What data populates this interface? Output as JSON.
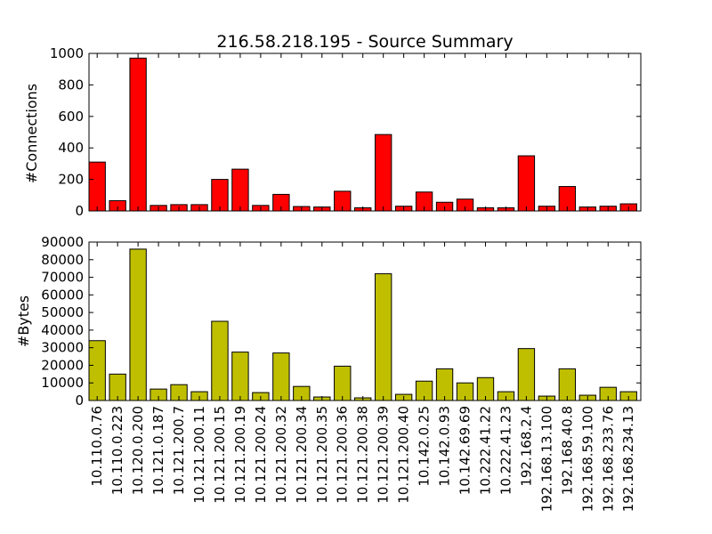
{
  "chart_data": [
    {
      "type": "bar",
      "title": "216.58.218.195 - Source Summary",
      "xlabel": "",
      "ylabel": "#Connections",
      "ylim": [
        0,
        1000
      ],
      "yticks": [
        0,
        200,
        400,
        600,
        800,
        1000
      ],
      "color": "#ff0000",
      "categories": [
        "10.110.0.76",
        "10.110.0.223",
        "10.120.0.200",
        "10.121.0.187",
        "10.121.200.7",
        "10.121.200.11",
        "10.121.200.15",
        "10.121.200.19",
        "10.121.200.24",
        "10.121.200.32",
        "10.121.200.34",
        "10.121.200.35",
        "10.121.200.36",
        "10.121.200.38",
        "10.121.200.39",
        "10.121.200.40",
        "10.142.0.25",
        "10.142.0.93",
        "10.142.69.69",
        "10.222.41.22",
        "10.222.41.23",
        "192.168.2.4",
        "192.168.13.100",
        "192.168.40.8",
        "192.168.59.100",
        "192.168.233.76",
        "192.168.234.13"
      ],
      "values": [
        310,
        65,
        970,
        35,
        40,
        40,
        200,
        265,
        35,
        105,
        28,
        25,
        125,
        20,
        485,
        30,
        120,
        55,
        75,
        20,
        20,
        350,
        30,
        155,
        25,
        30,
        45
      ],
      "grid": false
    },
    {
      "type": "bar",
      "xlabel": "",
      "ylabel": "#Bytes",
      "ylim": [
        0,
        90000
      ],
      "yticks": [
        0,
        10000,
        20000,
        30000,
        40000,
        50000,
        60000,
        70000,
        80000,
        90000
      ],
      "color": "#bfbf00",
      "categories": [
        "10.110.0.76",
        "10.110.0.223",
        "10.120.0.200",
        "10.121.0.187",
        "10.121.200.7",
        "10.121.200.11",
        "10.121.200.15",
        "10.121.200.19",
        "10.121.200.24",
        "10.121.200.32",
        "10.121.200.34",
        "10.121.200.35",
        "10.121.200.36",
        "10.121.200.38",
        "10.121.200.39",
        "10.121.200.40",
        "10.142.0.25",
        "10.142.0.93",
        "10.142.69.69",
        "10.222.41.22",
        "10.222.41.23",
        "192.168.2.4",
        "192.168.13.100",
        "192.168.40.8",
        "192.168.59.100",
        "192.168.233.76",
        "192.168.234.13"
      ],
      "values": [
        34000,
        15000,
        86000,
        6500,
        9000,
        5000,
        45000,
        27500,
        4500,
        27000,
        8000,
        2000,
        19500,
        1500,
        72000,
        3500,
        11000,
        18000,
        10000,
        13000,
        5000,
        29500,
        2500,
        18000,
        3000,
        7500,
        5000
      ],
      "grid": false
    }
  ]
}
